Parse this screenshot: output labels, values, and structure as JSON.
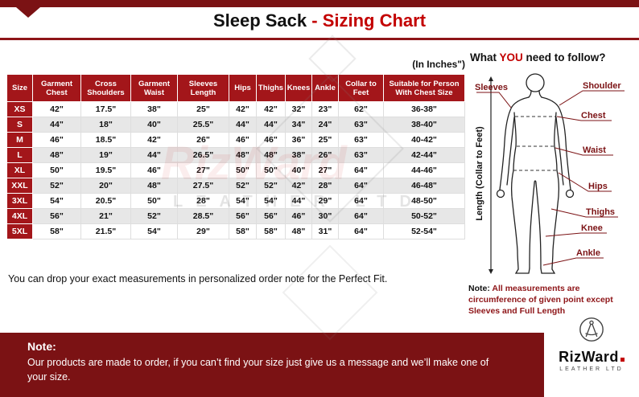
{
  "header": {
    "title_main": "Sleep Sack",
    "title_accent": " - Sizing Chart"
  },
  "table": {
    "unit_note": "(In Inches\")",
    "headers": [
      "Size",
      "Garment Chest",
      "Cross Shoulders",
      "Garment Waist",
      "Sleeves Length",
      "Hips",
      "Thighs",
      "Knees",
      "Ankle",
      "Collar to Feet",
      "Suitable for Person With Chest Size"
    ],
    "rows": [
      {
        "size": "XS",
        "values": [
          "42\"",
          "17.5\"",
          "38\"",
          "25\"",
          "42\"",
          "42\"",
          "32\"",
          "23\"",
          "62\"",
          "36-38\""
        ]
      },
      {
        "size": "S",
        "values": [
          "44\"",
          "18\"",
          "40\"",
          "25.5\"",
          "44\"",
          "44\"",
          "34\"",
          "24\"",
          "63\"",
          "38-40\""
        ]
      },
      {
        "size": "M",
        "values": [
          "46\"",
          "18.5\"",
          "42\"",
          "26\"",
          "46\"",
          "46\"",
          "36\"",
          "25\"",
          "63\"",
          "40-42\""
        ]
      },
      {
        "size": "L",
        "values": [
          "48\"",
          "19\"",
          "44\"",
          "26.5\"",
          "48\"",
          "48\"",
          "38\"",
          "26\"",
          "63\"",
          "42-44\""
        ]
      },
      {
        "size": "XL",
        "values": [
          "50\"",
          "19.5\"",
          "46\"",
          "27\"",
          "50\"",
          "50\"",
          "40\"",
          "27\"",
          "64\"",
          "44-46\""
        ]
      },
      {
        "size": "XXL",
        "values": [
          "52\"",
          "20\"",
          "48\"",
          "27.5\"",
          "52\"",
          "52\"",
          "42\"",
          "28\"",
          "64\"",
          "46-48\""
        ]
      },
      {
        "size": "3XL",
        "values": [
          "54\"",
          "20.5\"",
          "50\"",
          "28\"",
          "54\"",
          "54\"",
          "44\"",
          "29\"",
          "64\"",
          "48-50\""
        ]
      },
      {
        "size": "4XL",
        "values": [
          "56\"",
          "21\"",
          "52\"",
          "28.5\"",
          "56\"",
          "56\"",
          "46\"",
          "30\"",
          "64\"",
          "50-52\""
        ]
      },
      {
        "size": "5XL",
        "values": [
          "58\"",
          "21.5\"",
          "54\"",
          "29\"",
          "58\"",
          "58\"",
          "48\"",
          "31\"",
          "64\"",
          "52-54\""
        ]
      }
    ],
    "footnote": "You can drop your exact measurements in personalized order note for the Perfect Fit."
  },
  "diagram": {
    "title_prefix": "What ",
    "title_highlight": "YOU",
    "title_suffix": " need to follow?",
    "labels": [
      "Sleeves",
      "Shoulder",
      "Chest",
      "Waist",
      "Hips",
      "Thighs",
      "Knee",
      "Ankle"
    ],
    "axis_label": "Length (Collar to Feet)",
    "note_label": "Note:",
    "note_text": " All measurements are circumference of given point except Sleeves and Full Length"
  },
  "footer": {
    "note_label": "Note:",
    "note_text": "Our products are made to order, if you can’t find your size just give us a message and we’ll make one of your size.",
    "brand_name": "RizWard",
    "brand_tagline": "LEATHER LTD"
  },
  "watermark": {
    "brand": "RizWard",
    "letters": "LEATHER LTD"
  },
  "colors": {
    "maroon": "#7B1214",
    "table_header_red": "#A3161A",
    "accent_red": "#C30000",
    "row_alt_gray": "#E7E7E7"
  }
}
